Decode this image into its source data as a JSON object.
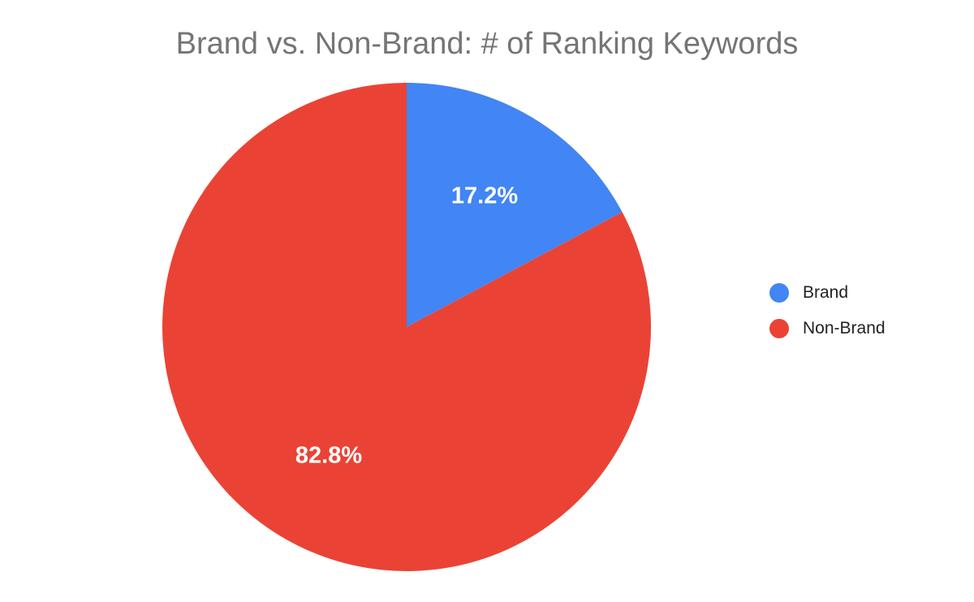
{
  "chart_data": {
    "type": "pie",
    "title": "Brand vs. Non-Brand: # of Ranking Keywords",
    "slices": [
      {
        "name": "Brand",
        "value": 17.2,
        "label": "17.2%",
        "color": "#4285F4"
      },
      {
        "name": "Non-Brand",
        "value": 82.8,
        "label": "82.8%",
        "color": "#EA4335"
      }
    ],
    "legend": {
      "placement": "right",
      "entries": [
        "Brand",
        "Non-Brand"
      ]
    }
  }
}
